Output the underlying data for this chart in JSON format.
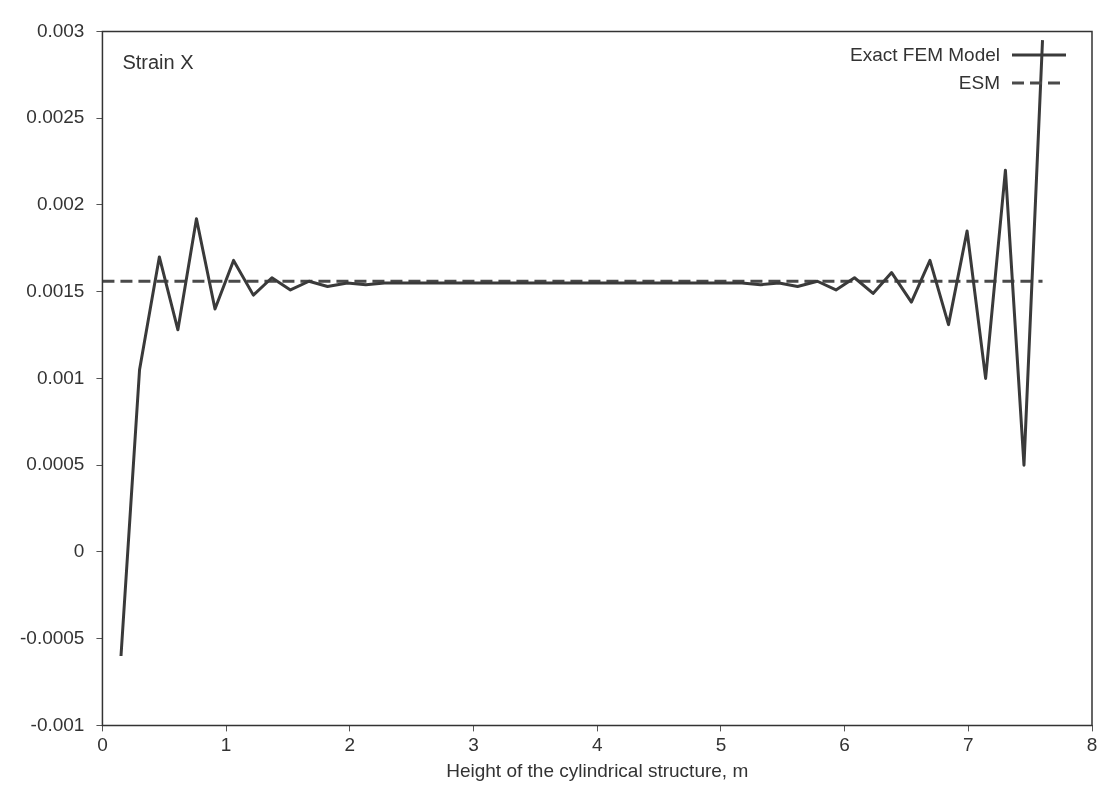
{
  "chart_data": {
    "type": "line",
    "xlabel": "Height of the cylindrical structure, m",
    "annotations": [
      "Strain X"
    ],
    "xlim": [
      0,
      8
    ],
    "xticks": [
      0,
      1,
      2,
      3,
      4,
      5,
      6,
      7,
      8
    ],
    "ylim": [
      -0.001,
      0.003
    ],
    "yticks": [
      -0.001,
      -0.0005,
      0,
      0.0005,
      0.001,
      0.0015,
      0.002,
      0.0025,
      0.003
    ],
    "grid": false,
    "legend": "top right",
    "marker": "none",
    "series": [
      {
        "name": "Exact FEM Model",
        "color": "#3a3a3a",
        "line_style": "solid",
        "x": [
          0.15,
          0.3,
          0.46,
          0.61,
          0.76,
          0.91,
          1.06,
          1.22,
          1.37,
          1.52,
          1.67,
          1.82,
          1.98,
          2.13,
          2.28,
          2.43,
          2.58,
          2.74,
          2.89,
          3.04,
          3.19,
          3.34,
          3.5,
          3.65,
          3.8,
          3.95,
          4.1,
          4.26,
          4.41,
          4.56,
          4.71,
          4.86,
          5.02,
          5.17,
          5.32,
          5.47,
          5.62,
          5.78,
          5.93,
          6.08,
          6.23,
          6.38,
          6.54,
          6.69,
          6.84,
          6.99,
          7.14,
          7.3,
          7.45,
          7.6
        ],
        "values": [
          -0.0006,
          0.00105,
          0.0017,
          0.00128,
          0.00192,
          0.0014,
          0.00168,
          0.00148,
          0.00158,
          0.00151,
          0.00156,
          0.00153,
          0.00155,
          0.00154,
          0.00155,
          0.00155,
          0.00155,
          0.00155,
          0.00155,
          0.00155,
          0.00155,
          0.00155,
          0.00155,
          0.00155,
          0.00155,
          0.00155,
          0.00155,
          0.00155,
          0.00155,
          0.00155,
          0.00155,
          0.00155,
          0.00155,
          0.00155,
          0.00154,
          0.00155,
          0.00153,
          0.00156,
          0.00151,
          0.00158,
          0.00149,
          0.00161,
          0.00144,
          0.00168,
          0.00131,
          0.00185,
          0.001,
          0.0022,
          0.0005,
          0.00295
        ]
      },
      {
        "name": "ESM",
        "color": "#4a4a4a",
        "line_style": "dashed",
        "x": [
          0,
          7.6
        ],
        "values": [
          0.00156,
          0.00156
        ]
      }
    ]
  }
}
